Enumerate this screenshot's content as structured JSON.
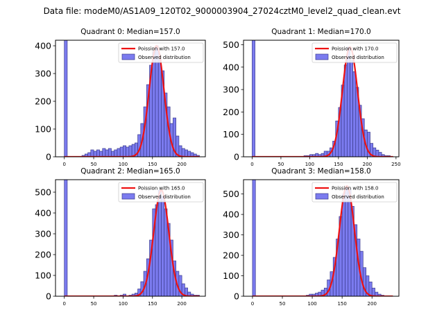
{
  "figure": {
    "title": "Data file: modeM0/AS1A09_120T02_9000003904_27024cztM0_level2_quad_clean.evt"
  },
  "chart_data": [
    {
      "type": "bar",
      "title": "Quadrant 0: Median=157.0",
      "xlabel": "",
      "ylabel": "",
      "xlim": [
        -15,
        240
      ],
      "ylim": [
        0,
        420
      ],
      "xticks": [
        0,
        50,
        100,
        150,
        200
      ],
      "yticks": [
        0,
        100,
        200,
        300,
        400
      ],
      "bin_width": 5,
      "bins_start": [
        0,
        30,
        35,
        40,
        45,
        50,
        55,
        60,
        65,
        70,
        75,
        80,
        85,
        90,
        95,
        100,
        105,
        110,
        115,
        120,
        125,
        130,
        135,
        140,
        145,
        150,
        155,
        160,
        165,
        170,
        175,
        180,
        185,
        190,
        195,
        200,
        205,
        210,
        215,
        220,
        225
      ],
      "counts": [
        1000,
        5,
        10,
        15,
        25,
        20,
        25,
        20,
        30,
        25,
        30,
        20,
        25,
        30,
        35,
        40,
        35,
        40,
        45,
        50,
        80,
        120,
        180,
        260,
        330,
        380,
        400,
        350,
        310,
        230,
        180,
        120,
        140,
        75,
        40,
        30,
        25,
        20,
        15,
        10,
        5
      ],
      "legend": {
        "curve": "Poission with 157.0",
        "bars": "Observed distribution",
        "position": "upper-right"
      },
      "poisson_mean": 157.0,
      "poisson_peak": 400
    },
    {
      "type": "bar",
      "title": "Quadrant 1: Median=170.0",
      "xlabel": "",
      "ylabel": "",
      "xlim": [
        -15,
        255
      ],
      "ylim": [
        0,
        520
      ],
      "xticks": [
        0,
        50,
        100,
        150,
        200,
        250
      ],
      "yticks": [
        0,
        100,
        200,
        300,
        400,
        500
      ],
      "bin_width": 5,
      "bins_start": [
        0,
        90,
        95,
        100,
        105,
        110,
        115,
        120,
        125,
        130,
        135,
        140,
        145,
        150,
        155,
        160,
        165,
        170,
        175,
        180,
        185,
        190,
        195,
        200,
        205,
        210,
        215,
        220,
        225,
        230,
        235
      ],
      "counts": [
        1000,
        5,
        5,
        10,
        10,
        15,
        10,
        15,
        25,
        25,
        40,
        70,
        160,
        220,
        320,
        410,
        490,
        430,
        380,
        310,
        230,
        170,
        120,
        110,
        60,
        40,
        30,
        20,
        10,
        5,
        5
      ],
      "legend": {
        "curve": "Poission with 170.0",
        "bars": "Observed distribution",
        "position": "upper-right"
      },
      "poisson_mean": 170.0,
      "poisson_peak": 490
    },
    {
      "type": "bar",
      "title": "Quadrant 2: Median=165.0",
      "xlabel": "",
      "ylabel": "",
      "xlim": [
        -15,
        240
      ],
      "ylim": [
        0,
        560
      ],
      "xticks": [
        0,
        50,
        100,
        150,
        200
      ],
      "yticks": [
        0,
        100,
        200,
        300,
        400,
        500
      ],
      "bin_width": 5,
      "bins_start": [
        0,
        85,
        95,
        100,
        110,
        115,
        120,
        125,
        130,
        135,
        140,
        145,
        150,
        155,
        160,
        165,
        170,
        175,
        180,
        185,
        190,
        195,
        200,
        205,
        210,
        215,
        220,
        225
      ],
      "counts": [
        1000,
        5,
        5,
        10,
        5,
        10,
        15,
        35,
        70,
        120,
        180,
        270,
        420,
        440,
        510,
        480,
        420,
        350,
        270,
        170,
        120,
        100,
        60,
        40,
        20,
        10,
        5,
        5
      ],
      "legend": {
        "curve": "Poission with 165.0",
        "bars": "Observed distribution",
        "position": "upper-right"
      },
      "poisson_mean": 165.0,
      "poisson_peak": 510
    },
    {
      "type": "bar",
      "title": "Quadrant 3: Median=158.0",
      "xlabel": "",
      "ylabel": "",
      "xlim": [
        -15,
        245
      ],
      "ylim": [
        0,
        570
      ],
      "xticks": [
        0,
        50,
        100,
        150,
        200
      ],
      "yticks": [
        0,
        100,
        200,
        300,
        400,
        500
      ],
      "bin_width": 5,
      "bins_start": [
        0,
        90,
        95,
        100,
        105,
        110,
        115,
        120,
        125,
        130,
        135,
        140,
        145,
        150,
        155,
        160,
        165,
        170,
        175,
        180,
        185,
        190,
        195,
        200,
        205,
        210,
        215
      ],
      "counts": [
        1000,
        5,
        10,
        10,
        15,
        20,
        30,
        40,
        80,
        120,
        190,
        280,
        390,
        500,
        530,
        520,
        440,
        350,
        280,
        220,
        140,
        100,
        70,
        40,
        20,
        10,
        5
      ],
      "legend": {
        "curve": "Poission with 158.0",
        "bars": "Observed distribution",
        "position": "upper-right"
      },
      "poisson_mean": 158.0,
      "poisson_peak": 540
    }
  ]
}
